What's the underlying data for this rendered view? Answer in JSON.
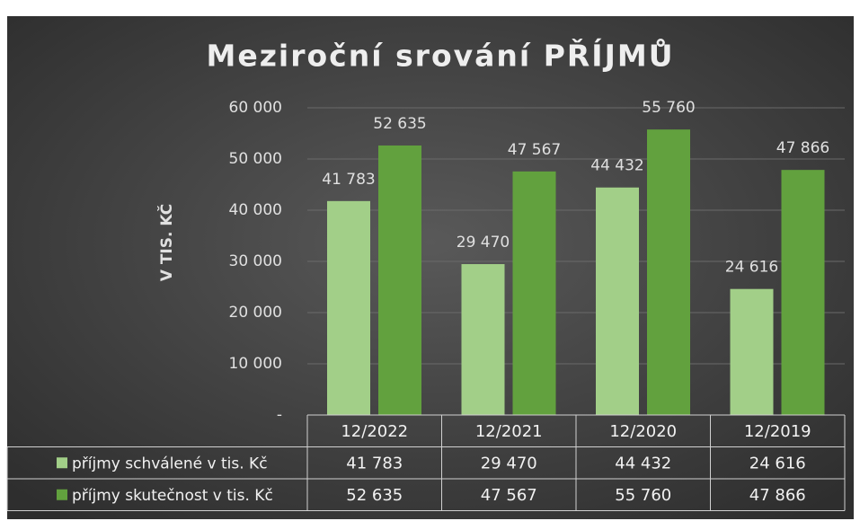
{
  "chart_data": {
    "type": "bar",
    "title": "Meziroční srování PŘÍJMŮ",
    "y_label": "V TIS. KČ",
    "categories": [
      "12/2022",
      "12/2021",
      "12/2020",
      "12/2019"
    ],
    "series": [
      {
        "name": "příjmy schválené v tis. Kč",
        "color": "#a2cf88",
        "values": [
          41783,
          29470,
          44432,
          24616
        ],
        "value_labels": [
          "41 783",
          "29 470",
          "44 432",
          "24 616"
        ]
      },
      {
        "name": "příjmy skutečnost v tis. Kč",
        "color": "#62a13e",
        "values": [
          52635,
          47567,
          55760,
          47866
        ],
        "value_labels": [
          "52 635",
          "47 567",
          "55 760",
          "47 866"
        ]
      }
    ],
    "ylim": [
      0,
      60000
    ],
    "yticks": [
      {
        "value": 0,
        "label": "-"
      },
      {
        "value": 10000,
        "label": "10 000"
      },
      {
        "value": 20000,
        "label": "20 000"
      },
      {
        "value": 30000,
        "label": "30 000"
      },
      {
        "value": 40000,
        "label": "40 000"
      },
      {
        "value": 50000,
        "label": "50 000"
      },
      {
        "value": 60000,
        "label": "60 000"
      }
    ],
    "grid": true
  }
}
